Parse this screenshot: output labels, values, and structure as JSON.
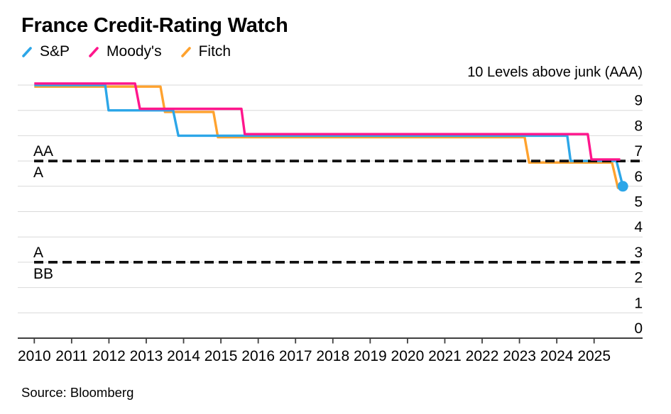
{
  "title": "France Credit-Rating Watch",
  "source": "Source: Bloomberg",
  "colors": {
    "sp": "#2CA6E8",
    "moodys": "#FF168C",
    "fitch": "#FFA22E",
    "grid": "#D9D9D9",
    "axis": "#3F3F3F",
    "dashed": "#111111",
    "text": "#000000"
  },
  "chart_data": {
    "type": "line",
    "title": "France Credit-Rating Watch",
    "y_axis_title": "10 Levels above junk (AAA)",
    "xlabel": "",
    "ylabel": "Levels above junk",
    "x_tick_labels": [
      "2010",
      "2011",
      "2012",
      "2013",
      "2014",
      "2015",
      "2016",
      "2017",
      "2018",
      "2019",
      "2020",
      "2021",
      "2022",
      "2023",
      "2024",
      "2025"
    ],
    "y_ticks": [
      0,
      1,
      2,
      3,
      4,
      5,
      6,
      7,
      8,
      9
    ],
    "ylim": [
      0,
      10
    ],
    "xlim": [
      2009.55,
      2026.3
    ],
    "grid": "horizontal-only",
    "legend_position": "top-left",
    "thresholds": [
      {
        "y": 7,
        "label_above": "AA",
        "label_below": "A"
      },
      {
        "y": 3,
        "label_above": "A",
        "label_below": "BB"
      }
    ],
    "series": [
      {
        "name": "S&P",
        "color": "#2CA6E8",
        "end_marker": "dot",
        "points": [
          [
            2010.0,
            10
          ],
          [
            2011.9,
            10
          ],
          [
            2011.99,
            9
          ],
          [
            2013.72,
            9
          ],
          [
            2013.86,
            8
          ],
          [
            2024.28,
            8
          ],
          [
            2024.37,
            7
          ],
          [
            2025.6,
            7
          ],
          [
            2025.77,
            6
          ]
        ]
      },
      {
        "name": "Moody's",
        "color": "#FF168C",
        "end_marker": "none",
        "points": [
          [
            2010.0,
            10
          ],
          [
            2012.7,
            10
          ],
          [
            2012.83,
            9
          ],
          [
            2015.55,
            9
          ],
          [
            2015.64,
            8
          ],
          [
            2024.83,
            8
          ],
          [
            2024.93,
            7
          ],
          [
            2025.7,
            7
          ]
        ]
      },
      {
        "name": "Fitch",
        "color": "#FFA22E",
        "end_marker": "none",
        "points": [
          [
            2010.0,
            10
          ],
          [
            2013.38,
            10
          ],
          [
            2013.5,
            9
          ],
          [
            2014.8,
            9
          ],
          [
            2014.92,
            8
          ],
          [
            2023.14,
            8
          ],
          [
            2023.26,
            7
          ],
          [
            2025.48,
            7
          ],
          [
            2025.64,
            6
          ],
          [
            2025.7,
            6
          ]
        ]
      }
    ]
  }
}
